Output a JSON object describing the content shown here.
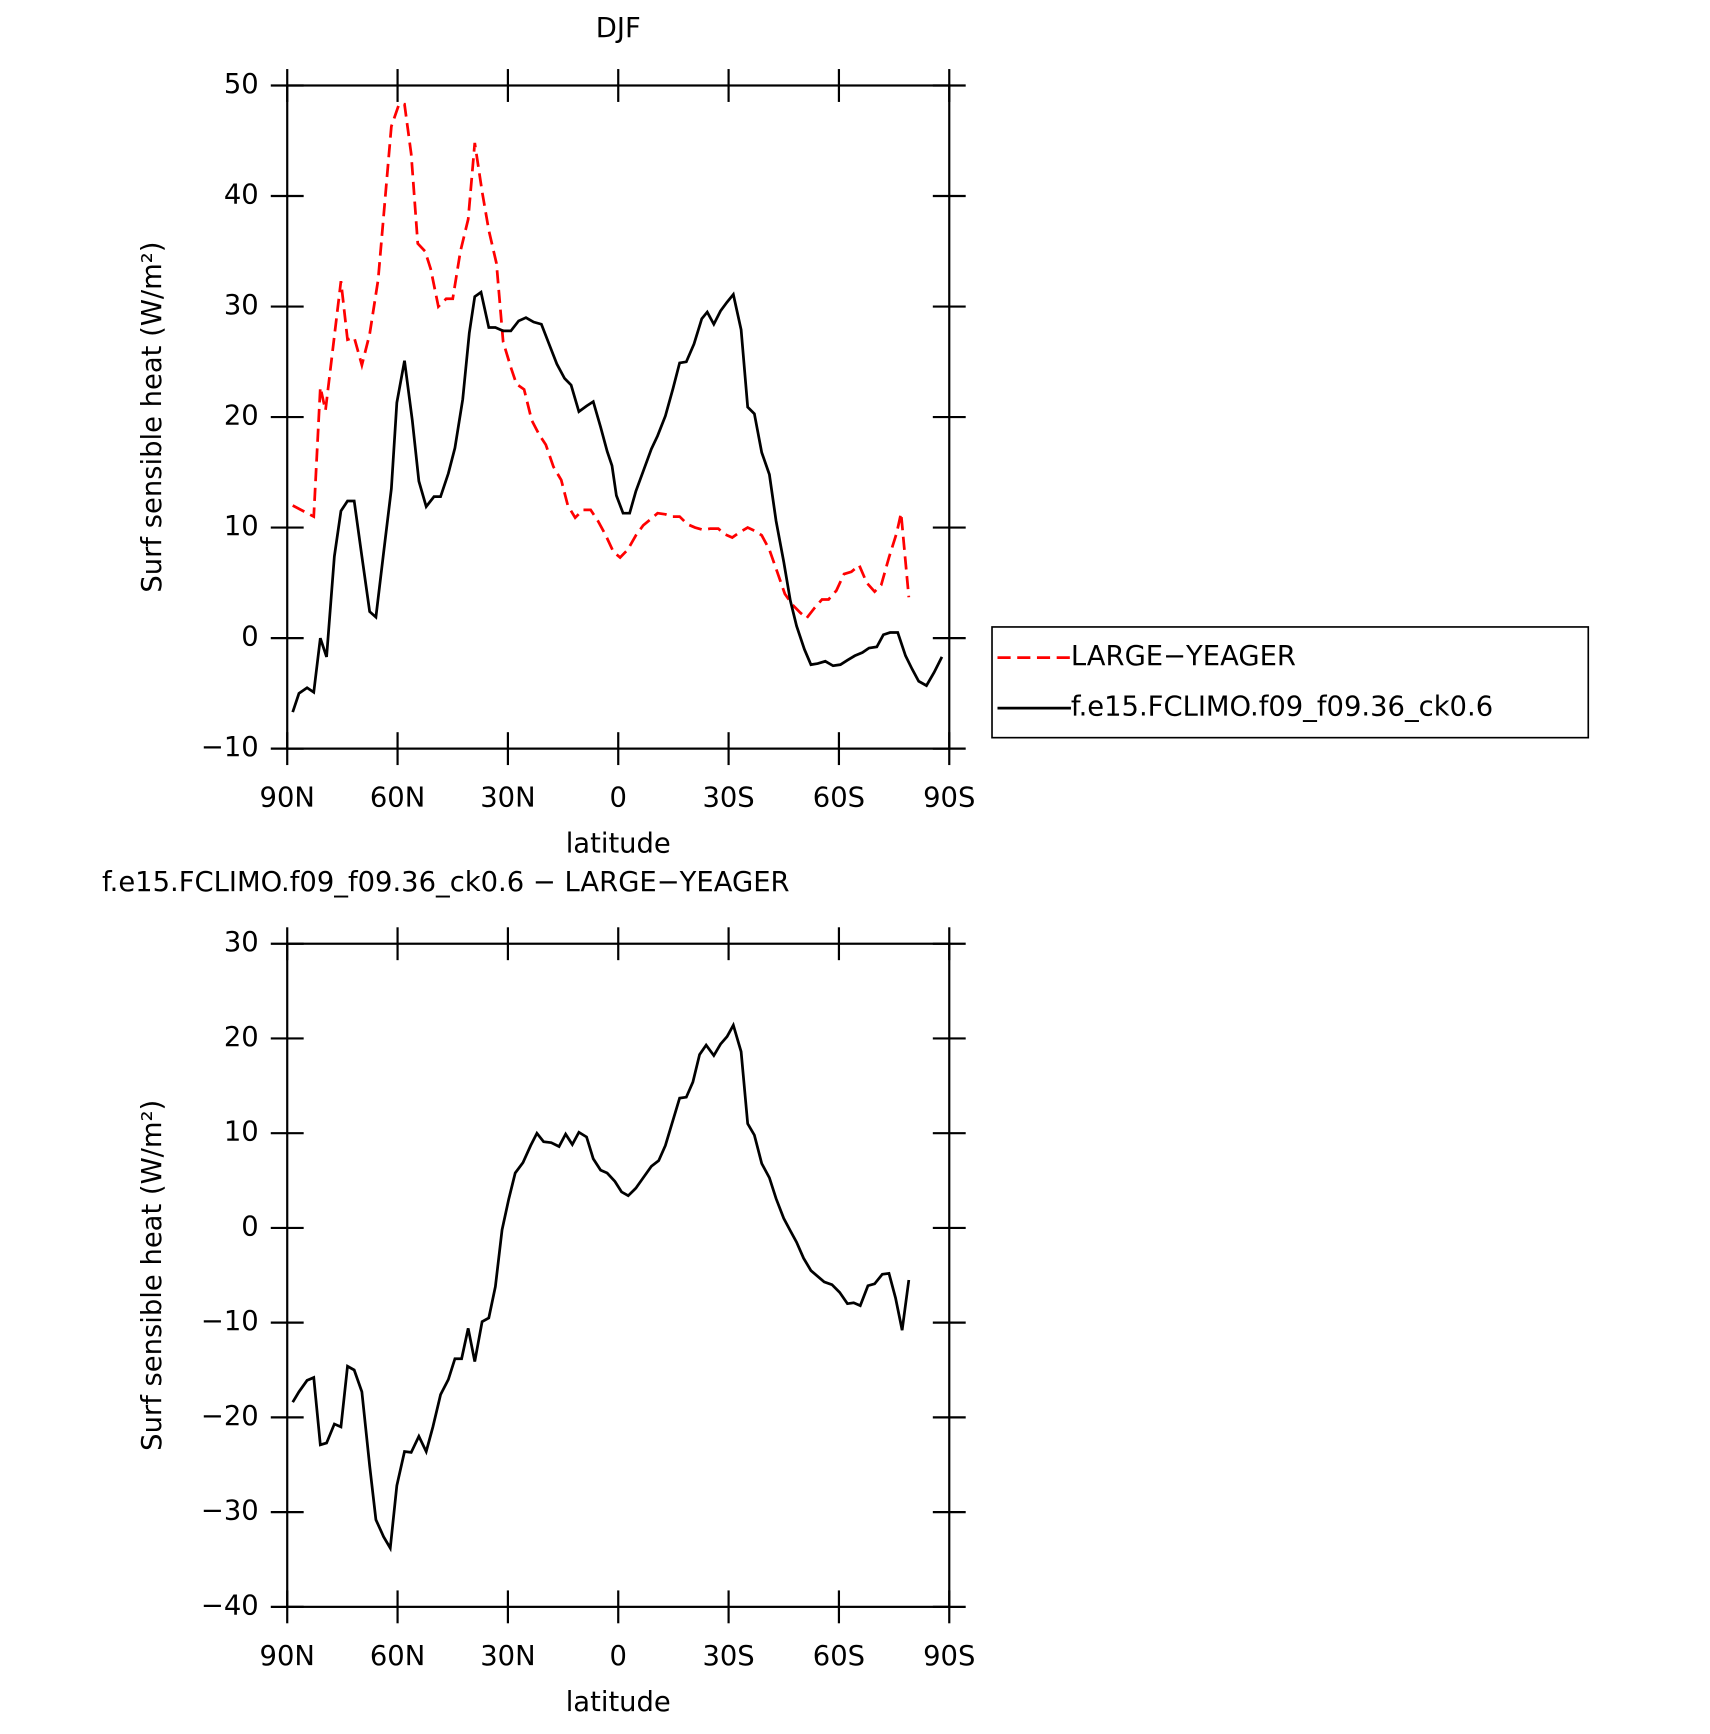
{
  "chart_data": [
    {
      "type": "line",
      "title": "DJF",
      "xlabel": "latitude",
      "ylabel": "Surf sensible heat (W/m²)",
      "xlim": [
        90,
        -90
      ],
      "xticks": [
        {
          "value": 90,
          "label": "90N"
        },
        {
          "value": 60,
          "label": "60N"
        },
        {
          "value": 30,
          "label": "30N"
        },
        0,
        {
          "value": -30,
          "label": "30S"
        },
        {
          "value": -60,
          "label": "60S"
        },
        {
          "value": -90,
          "label": "90S"
        }
      ],
      "ylim": [
        -10,
        50
      ],
      "yticks": [
        {
          "value": -10,
          "label": "−10"
        },
        0,
        10,
        20,
        30,
        40,
        50
      ],
      "legend": "right",
      "series": [
        {
          "name": "LARGE−YEAGER",
          "color": "#ff0000",
          "line_style": "dashed",
          "x": [
            88.5,
            82.8,
            81,
            79.6,
            75.4,
            73.6,
            71.8,
            69.7,
            67.6,
            65.3,
            61.7,
            59.6,
            58.1,
            56.3,
            54.5,
            52.5,
            51,
            48.9,
            46.8,
            45,
            42.9,
            40.8,
            39,
            37,
            35.2,
            33.1,
            31.3,
            29.2,
            27.7,
            25.6,
            23.5,
            21.5,
            19.7,
            17.6,
            15.5,
            13.7,
            11.7,
            9.6,
            7.5,
            5.5,
            3.4,
            1.3,
            -0.5,
            -2.6,
            -4.8,
            -6.8,
            -8.6,
            -10.7,
            -12.8,
            -14.6,
            -16.7,
            -18.8,
            -20.9,
            -23,
            -25,
            -27.2,
            -28.9,
            -31,
            -33.1,
            -35.2,
            -37.2,
            -39,
            -41.1,
            -43.2,
            -45.3,
            -47.4,
            -49.5,
            -51.2,
            -53.3,
            -55.4,
            -57.2,
            -59.3,
            -61.4,
            -63.4,
            -65.5,
            -67.6,
            -69.7,
            -71.5,
            -73.6,
            -75.7,
            -76.9,
            -79
          ],
          "values": [
            12,
            11,
            22.7,
            20.6,
            32.3,
            27,
            27.2,
            24.7,
            27.5,
            32.4,
            46.3,
            48.3,
            48.3,
            43.8,
            35.7,
            35,
            33.4,
            30,
            30.7,
            30.7,
            35,
            37.9,
            44.8,
            40.4,
            36.9,
            33.9,
            26.8,
            24.5,
            23,
            22.5,
            19.7,
            18.4,
            17.5,
            15.5,
            14.3,
            12,
            10.9,
            11.6,
            11.6,
            10.6,
            9.3,
            7.8,
            7.3,
            8,
            9.3,
            10.2,
            10.7,
            11.3,
            11.2,
            11,
            11,
            10.3,
            10,
            9.8,
            9.9,
            9.9,
            9.4,
            9.1,
            9.6,
            10,
            9.7,
            9.3,
            8,
            6,
            4,
            3,
            2.3,
            1.8,
            2.7,
            3.5,
            3.5,
            4.3,
            5.8,
            6,
            6.6,
            5,
            4.2,
            4.8,
            7.3,
            9.5,
            11.3,
            3.7
          ]
        },
        {
          "name": "f.e15.FCLIMO.f09_f09.36_ck0.6",
          "color": "#000000",
          "line_style": "solid",
          "x": [
            88.5,
            86.8,
            84.6,
            82.8,
            81,
            79.3,
            77.2,
            75.4,
            73.6,
            71.8,
            69.7,
            67.6,
            65.9,
            63.8,
            61.7,
            60.2,
            58.1,
            56,
            54.2,
            52.2,
            50.1,
            48.3,
            46.2,
            44.4,
            42.3,
            40.5,
            39,
            37.3,
            35.2,
            33.4,
            31.3,
            29.2,
            27.1,
            25.1,
            23,
            20.9,
            18.8,
            16.7,
            14.6,
            12.8,
            10.7,
            8.6,
            6.8,
            4.8,
            3,
            1.7,
            0.5,
            -1.3,
            -3.1,
            -4.8,
            -6.8,
            -9,
            -10.7,
            -12.8,
            -14.9,
            -16.7,
            -18.5,
            -20.6,
            -22.7,
            -24.2,
            -26,
            -27.8,
            -29.6,
            -31.3,
            -33.4,
            -35.2,
            -37,
            -39,
            -41.1,
            -42.9,
            -45,
            -46.8,
            -48.5,
            -50.6,
            -52.4,
            -54.2,
            -56.3,
            -58.4,
            -60.4,
            -62.3,
            -64.3,
            -66.4,
            -68.2,
            -70.3,
            -72.1,
            -73.9,
            -76,
            -78.1,
            -79.9,
            -81.7,
            -83.8,
            -85.9,
            -88
          ],
          "values": [
            -6.7,
            -5,
            -4.5,
            -4.9,
            0,
            -1.7,
            7.4,
            11.5,
            12.4,
            12.4,
            7.4,
            2.4,
            1.9,
            7.7,
            13.5,
            21.3,
            25.1,
            19.7,
            14.2,
            11.9,
            12.8,
            12.8,
            14.9,
            17.2,
            21.6,
            27.6,
            30.9,
            31.3,
            28.1,
            28.1,
            27.8,
            27.8,
            28.7,
            29,
            28.6,
            28.4,
            26.6,
            24.8,
            23.5,
            22.9,
            20.5,
            21,
            21.4,
            19.1,
            16.9,
            15.6,
            12.9,
            11.3,
            11.3,
            13.3,
            15.1,
            17.1,
            18.3,
            20.1,
            22.6,
            24.9,
            25,
            26.6,
            28.9,
            29.5,
            28.4,
            29.6,
            30.4,
            31.1,
            27.9,
            20.9,
            20.3,
            16.8,
            14.8,
            10.6,
            6.9,
            3.4,
            1.1,
            -1,
            -2.4,
            -2.3,
            -2.1,
            -2.5,
            -2.4,
            -2,
            -1.6,
            -1.3,
            -0.9,
            -0.8,
            0.3,
            0.5,
            0.5,
            -1.6,
            -2.8,
            -3.9,
            -4.3,
            -3.1,
            -1.7
          ]
        }
      ]
    },
    {
      "type": "line",
      "title": "f.e15.FCLIMO.f09_f09.36_ck0.6 − LARGE−YEAGER",
      "xlabel": "latitude",
      "ylabel": "Surf sensible heat (W/m²)",
      "xlim": [
        90,
        -90
      ],
      "xticks": [
        {
          "value": 90,
          "label": "90N"
        },
        {
          "value": 60,
          "label": "60N"
        },
        {
          "value": 30,
          "label": "30N"
        },
        0,
        {
          "value": -30,
          "label": "30S"
        },
        {
          "value": -60,
          "label": "60S"
        },
        {
          "value": -90,
          "label": "90S"
        }
      ],
      "ylim": [
        -40,
        30
      ],
      "yticks": [
        {
          "value": -40,
          "label": "−40"
        },
        {
          "value": -30,
          "label": "−30"
        },
        {
          "value": -20,
          "label": "−20"
        },
        {
          "value": -10,
          "label": "−10"
        },
        0,
        10,
        20,
        30
      ],
      "series": [
        {
          "color": "#000000",
          "line_style": "solid",
          "x": [
            88.5,
            86.8,
            84.6,
            82.8,
            81,
            79.3,
            77.2,
            75.4,
            73.6,
            71.8,
            69.7,
            67.6,
            65.9,
            63.8,
            62,
            60.2,
            58.1,
            56.3,
            54.2,
            52.2,
            50.4,
            48.3,
            46.2,
            44.4,
            42.6,
            40.8,
            39,
            37,
            35.2,
            33.4,
            31.6,
            29.8,
            28,
            25.9,
            23.8,
            22.1,
            20.3,
            18.2,
            16.1,
            14.3,
            12.5,
            10.7,
            8.6,
            6.8,
            4.8,
            3,
            0.9,
            -0.9,
            -2.7,
            -4.8,
            -6.8,
            -9,
            -11,
            -12.8,
            -14.9,
            -16.7,
            -18.5,
            -20.3,
            -22.1,
            -23.9,
            -26,
            -27.8,
            -29.6,
            -31.3,
            -33.4,
            -35.2,
            -37,
            -39,
            -41.1,
            -42.9,
            -45,
            -46.8,
            -48.5,
            -50.4,
            -52.4,
            -54.2,
            -56,
            -58.1,
            -60.2,
            -62.3,
            -64,
            -65.8,
            -67.9,
            -69.7,
            -71.8,
            -73.6,
            -75.4,
            -77.2,
            -79
          ],
          "values": [
            -18.4,
            -17.3,
            -16.1,
            -15.8,
            -22.9,
            -22.7,
            -20.7,
            -21,
            -14.6,
            -15,
            -17.3,
            -25.1,
            -30.8,
            -32.6,
            -33.8,
            -27.2,
            -23.6,
            -23.7,
            -22,
            -23.6,
            -21,
            -17.6,
            -16,
            -13.8,
            -13.8,
            -10.6,
            -14.1,
            -9.9,
            -9.5,
            -6.2,
            -0.2,
            3,
            5.8,
            6.9,
            8.7,
            10,
            9.1,
            9,
            8.6,
            9.9,
            8.8,
            10.1,
            9.6,
            7.3,
            6.1,
            5.8,
            4.9,
            3.8,
            3.4,
            4.2,
            5.3,
            6.5,
            7.1,
            8.7,
            11.4,
            13.7,
            13.8,
            15.4,
            18.3,
            19.3,
            18.2,
            19.4,
            20.2,
            21.4,
            18.6,
            11,
            9.8,
            6.8,
            5.3,
            3.1,
            1,
            -0.3,
            -1.5,
            -3.2,
            -4.5,
            -5.1,
            -5.7,
            -6,
            -6.8,
            -8,
            -7.9,
            -8.2,
            -6.1,
            -5.9,
            -4.9,
            -4.8,
            -7.4,
            -10.8,
            -5.5
          ]
        }
      ]
    }
  ]
}
